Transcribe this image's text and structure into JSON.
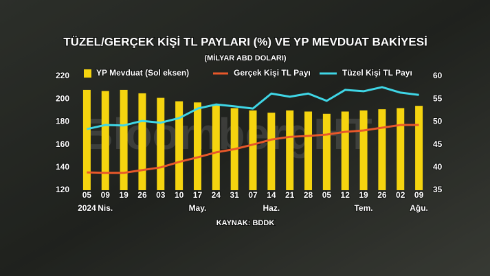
{
  "chart_data": {
    "type": "bar",
    "title": "TÜZEL/GERÇEK KİŞİ TL PAYLARI (%) VE YP MEVDUAT BAKİYESİ",
    "subtitle": "(MİLYAR ABD DOLARI)",
    "source": "KAYNAK: BDDK",
    "watermark": "BloombergHT",
    "categories": [
      "05",
      "09",
      "19",
      "26",
      "03",
      "10",
      "17",
      "24",
      "31",
      "07",
      "14",
      "21",
      "28",
      "05",
      "12",
      "19",
      "26",
      "02",
      "09"
    ],
    "period_labels": [
      "2024",
      "Nis.",
      null,
      null,
      null,
      null,
      "May.",
      null,
      null,
      null,
      "Haz.",
      null,
      null,
      null,
      null,
      "Tem.",
      null,
      null,
      "Ağu."
    ],
    "series": [
      {
        "name": "YP Mevduat (Sol eksen)",
        "type": "bar",
        "color": "#f5d40f",
        "values": [
          208,
          207,
          208,
          205,
          201,
          198,
          197,
          195,
          192,
          190,
          188,
          190,
          189,
          187,
          189,
          190,
          191,
          192,
          194
        ]
      },
      {
        "name": "Gerçek Kişi TL Payı",
        "type": "line",
        "axis": "y2",
        "color": "#e8582a",
        "values": [
          38.9,
          38.8,
          38.8,
          39.4,
          40,
          41.2,
          42.2,
          43.3,
          44,
          45,
          46.1,
          46.7,
          46.9,
          47.2,
          47.8,
          48.1,
          48.7,
          49.3,
          49.3
        ]
      },
      {
        "name": "Tüzel Kişi TL Payı",
        "type": "line",
        "axis": "y2",
        "color": "#3fd6e6",
        "values": [
          48.4,
          49.3,
          49.2,
          50.2,
          49.8,
          50.8,
          52.9,
          53.8,
          53.4,
          52.9,
          56.2,
          55.5,
          56.2,
          54.6,
          57,
          56.7,
          57.6,
          56.4,
          55.9
        ]
      }
    ],
    "ylim": [
      120,
      220
    ],
    "yticks": [
      120,
      140,
      160,
      180,
      200,
      220
    ],
    "y2lim": [
      35,
      60
    ],
    "y2ticks": [
      35,
      40,
      45,
      50,
      55,
      60
    ]
  }
}
